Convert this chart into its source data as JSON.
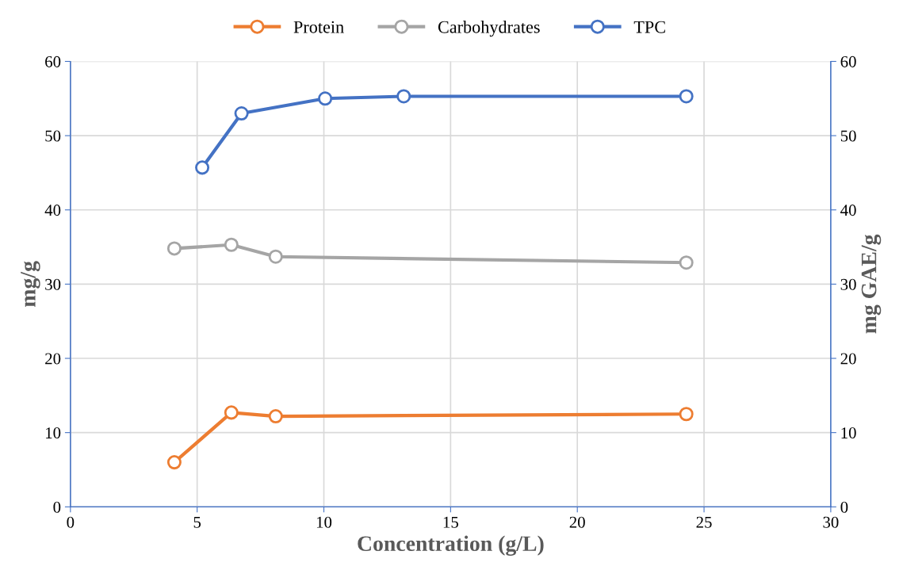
{
  "chart_data": {
    "type": "line",
    "xlabel": "Concentration (g/L)",
    "ylabel": "mg/g",
    "y2label": "mg GAE/g",
    "xlim": [
      0,
      30
    ],
    "xticks": [
      0,
      5,
      10,
      15,
      20,
      25,
      30
    ],
    "ylim": [
      0,
      60
    ],
    "yticks": [
      0,
      10,
      20,
      30,
      40,
      50,
      60
    ],
    "y2lim": [
      0,
      60
    ],
    "y2ticks": [
      0,
      10,
      20,
      30,
      40,
      50,
      60
    ],
    "grid": true,
    "legend": "top",
    "marker": "circle",
    "line_style": "solid",
    "series": [
      {
        "name": "Protein",
        "color": "#ed7d31",
        "x": [
          4.1,
          6.35,
          8.1,
          24.3
        ],
        "values": [
          6.0,
          12.7,
          12.2,
          12.5
        ]
      },
      {
        "name": "Carbohydrates",
        "color": "#a5a5a5",
        "x": [
          4.1,
          6.35,
          8.1,
          24.3
        ],
        "values": [
          34.8,
          35.3,
          33.7,
          32.9
        ]
      },
      {
        "name": "TPC",
        "color": "#4472c4",
        "x": [
          5.2,
          6.75,
          10.05,
          13.15,
          24.3
        ],
        "values": [
          45.7,
          53.0,
          55.0,
          55.3,
          55.3
        ]
      }
    ]
  }
}
